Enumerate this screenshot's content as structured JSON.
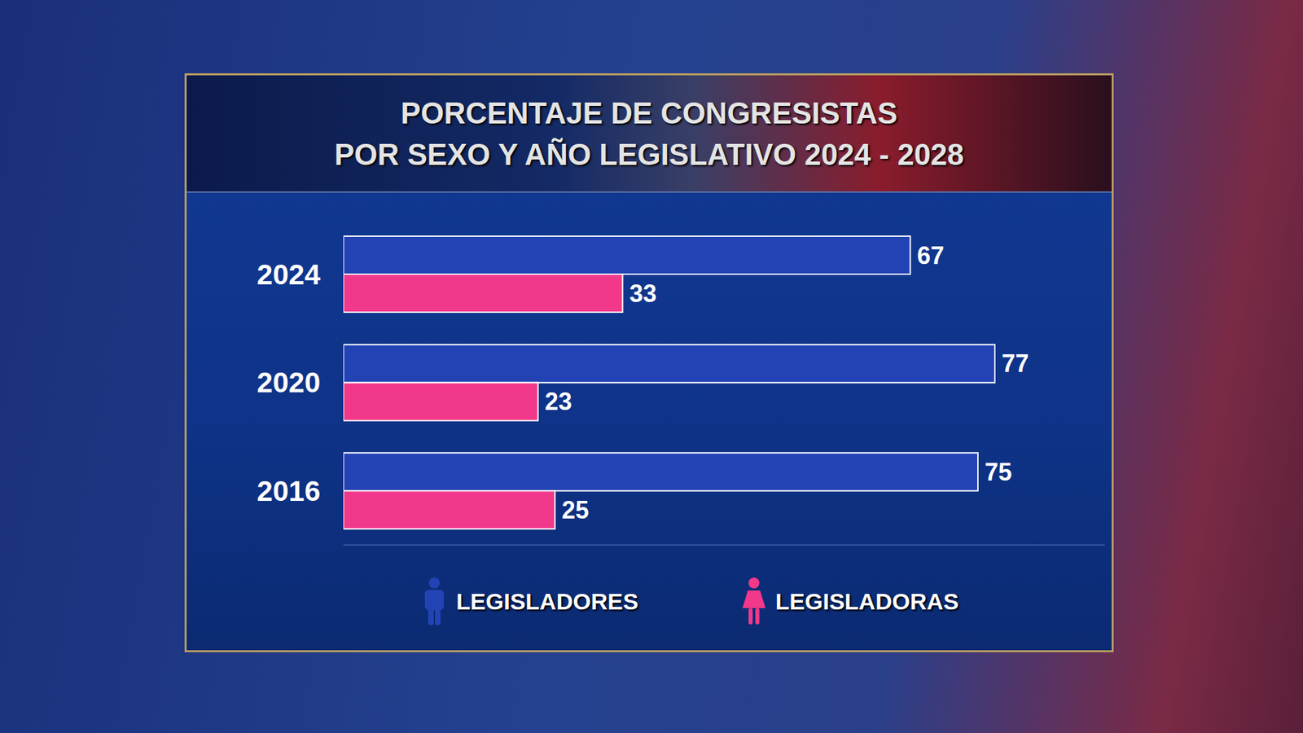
{
  "chart_data": {
    "type": "bar",
    "orientation": "horizontal",
    "title": "PORCENTAJE DE CONGRESISTAS\nPOR SEXO Y AÑO LEGISLATIVO 2024 - 2028",
    "categories": [
      "2024",
      "2020",
      "2016"
    ],
    "series": [
      {
        "name": "LEGISLADORES",
        "color": "#2343b5",
        "values": [
          67,
          77,
          75
        ]
      },
      {
        "name": "LEGISLADORAS",
        "color": "#f2388a",
        "values": [
          33,
          23,
          25
        ]
      }
    ],
    "xlim": [
      0,
      90
    ],
    "data_labels": true,
    "tick_labels": "y",
    "legend": "bottom",
    "grid": false
  }
}
